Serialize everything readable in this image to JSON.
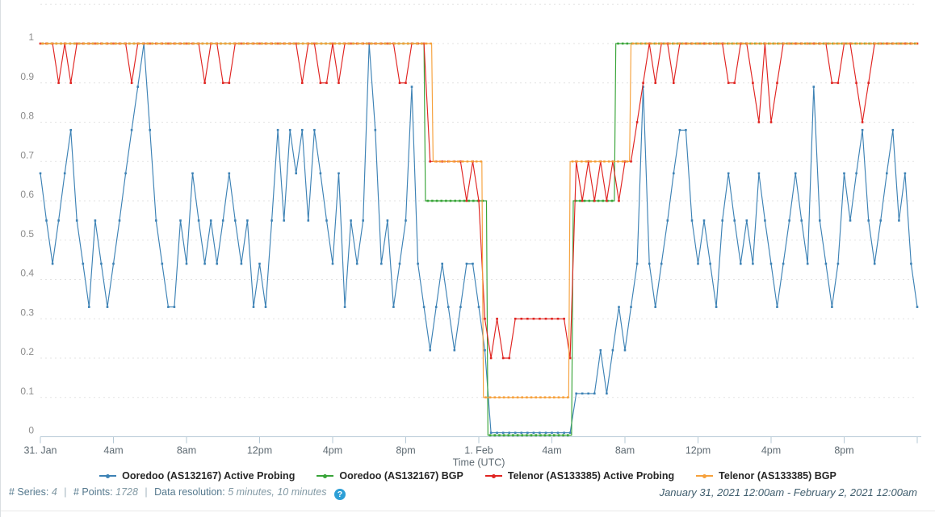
{
  "chart_data": {
    "type": "line",
    "title": "",
    "xlabel": "Time (UTC)",
    "ylabel": "",
    "x_unit": "hours since January 31, 2021 12:00am UTC",
    "xlim_hours": [
      0,
      48
    ],
    "ylim": [
      0,
      1.1
    ],
    "grid": true,
    "legend_position": "bottom",
    "x_tick_hours": [
      0,
      4,
      8,
      12,
      16,
      20,
      24,
      28,
      32,
      36,
      40,
      44
    ],
    "x_tick_labels": [
      "31. Jan",
      "4am",
      "8am",
      "12pm",
      "4pm",
      "8pm",
      "1. Feb",
      "4am",
      "8am",
      "12pm",
      "4pm",
      "8pm"
    ],
    "y_tick_values": [
      1,
      0.9,
      0.8,
      0.7,
      0.6,
      0.5,
      0.4,
      0.3,
      0.2,
      0.1,
      0
    ],
    "series": [
      {
        "name": "Ooredoo (AS132167) Active Probing",
        "color": "#3d82b5",
        "kind": "sampled",
        "start_hour": 0,
        "interval_hours": 0.33333,
        "values": [
          0.67,
          0.55,
          0.44,
          0.55,
          0.67,
          0.78,
          0.55,
          0.44,
          0.33,
          0.55,
          0.44,
          0.33,
          0.44,
          0.55,
          0.67,
          0.78,
          0.89,
          1,
          0.78,
          0.55,
          0.44,
          0.33,
          0.33,
          0.55,
          0.44,
          0.67,
          0.55,
          0.44,
          0.55,
          0.44,
          0.55,
          0.67,
          0.55,
          0.44,
          0.55,
          0.33,
          0.44,
          0.33,
          0.55,
          0.78,
          0.55,
          0.78,
          0.67,
          0.78,
          0.55,
          0.78,
          0.67,
          0.55,
          0.44,
          0.67,
          0.33,
          0.55,
          0.44,
          0.55,
          1,
          0.78,
          0.44,
          0.55,
          0.33,
          0.44,
          0.55,
          0.89,
          0.44,
          0.33,
          0.22,
          0.33,
          0.44,
          0.33,
          0.22,
          0.33,
          0.44,
          0.44,
          0.33,
          0.22,
          0.01,
          0.01,
          0.01,
          0.01,
          0.01,
          0.01,
          0.01,
          0.01,
          0.01,
          0.01,
          0.01,
          0.01,
          0.01,
          0.01,
          0.11,
          0.11,
          0.11,
          0.11,
          0.22,
          0.11,
          0.22,
          0.33,
          0.22,
          0.33,
          0.44,
          0.89,
          0.44,
          0.33,
          0.44,
          0.55,
          0.67,
          0.78,
          0.78,
          0.55,
          0.44,
          0.55,
          0.44,
          0.33,
          0.55,
          0.67,
          0.55,
          0.44,
          0.55,
          0.44,
          0.67,
          0.55,
          0.44,
          0.33,
          0.44,
          0.55,
          0.67,
          0.55,
          0.44,
          0.89,
          0.55,
          0.44,
          0.33,
          0.44,
          0.67,
          0.55,
          0.67,
          0.78,
          0.55,
          0.44,
          0.55,
          0.67,
          0.78,
          0.55,
          0.67,
          0.44,
          0.33
        ]
      },
      {
        "name": "Ooredoo (AS132167) BGP",
        "color": "#38a438",
        "kind": "step",
        "points": [
          [
            0,
            1
          ],
          [
            21,
            1
          ],
          [
            21.08,
            0.6
          ],
          [
            24.42,
            0.6
          ],
          [
            24.5,
            0.004
          ],
          [
            29.08,
            0.004
          ],
          [
            29.17,
            0.6
          ],
          [
            31.42,
            0.6
          ],
          [
            31.5,
            1
          ],
          [
            48,
            1
          ]
        ]
      },
      {
        "name": "Telenor (AS133385) Active Probing",
        "color": "#e02421",
        "kind": "sampled",
        "start_hour": 0,
        "interval_hours": 0.33333,
        "values": [
          1,
          1,
          1,
          0.9,
          1,
          0.9,
          1,
          1,
          1,
          1,
          1,
          1,
          1,
          1,
          1,
          0.9,
          1,
          1,
          1,
          1,
          1,
          1,
          1,
          1,
          1,
          1,
          1,
          0.9,
          1,
          1,
          0.9,
          0.9,
          1,
          1,
          1,
          1,
          1,
          1,
          1,
          1,
          1,
          1,
          1,
          0.9,
          1,
          1,
          0.9,
          0.9,
          1,
          0.9,
          1,
          1,
          1,
          1,
          1,
          1,
          1,
          1,
          1,
          0.9,
          0.9,
          1,
          1,
          1,
          0.7,
          0.7,
          0.7,
          0.7,
          0.7,
          0.7,
          0.6,
          0.7,
          0.6,
          0.3,
          0.2,
          0.3,
          0.2,
          0.2,
          0.3,
          0.3,
          0.3,
          0.3,
          0.3,
          0.3,
          0.3,
          0.3,
          0.3,
          0.2,
          0.7,
          0.6,
          0.7,
          0.6,
          0.7,
          0.6,
          0.7,
          0.6,
          0.7,
          0.7,
          0.8,
          0.9,
          1,
          0.9,
          1,
          1,
          0.9,
          1,
          1,
          1,
          1,
          1,
          1,
          1,
          1,
          0.9,
          0.9,
          1,
          1,
          0.9,
          0.8,
          1,
          0.8,
          0.9,
          1,
          1,
          1,
          1,
          1,
          1,
          1,
          1,
          0.9,
          0.9,
          1,
          1,
          0.9,
          0.8,
          0.9,
          1,
          1,
          1,
          1,
          1,
          1,
          1,
          1
        ]
      },
      {
        "name": "Telenor (AS133385) BGP",
        "color": "#f6a13c",
        "kind": "step",
        "points": [
          [
            0,
            1
          ],
          [
            21.42,
            1
          ],
          [
            21.5,
            0.7
          ],
          [
            24.17,
            0.7
          ],
          [
            24.25,
            0.1
          ],
          [
            28.92,
            0.1
          ],
          [
            29,
            0.7
          ],
          [
            32.25,
            0.7
          ],
          [
            32.33,
            1
          ],
          [
            48,
            1
          ]
        ]
      }
    ]
  },
  "footer": {
    "stats": {
      "series_label": "# Series:",
      "series_value": "4",
      "points_label": "# Points:",
      "points_value": "1728",
      "resolution_label": "Data resolution:",
      "resolution_value": "5 minutes, 10 minutes",
      "separator": "|",
      "help_glyph": "?"
    },
    "date_range": "January 31, 2021 12:00am - February 2, 2021 12:00am"
  }
}
